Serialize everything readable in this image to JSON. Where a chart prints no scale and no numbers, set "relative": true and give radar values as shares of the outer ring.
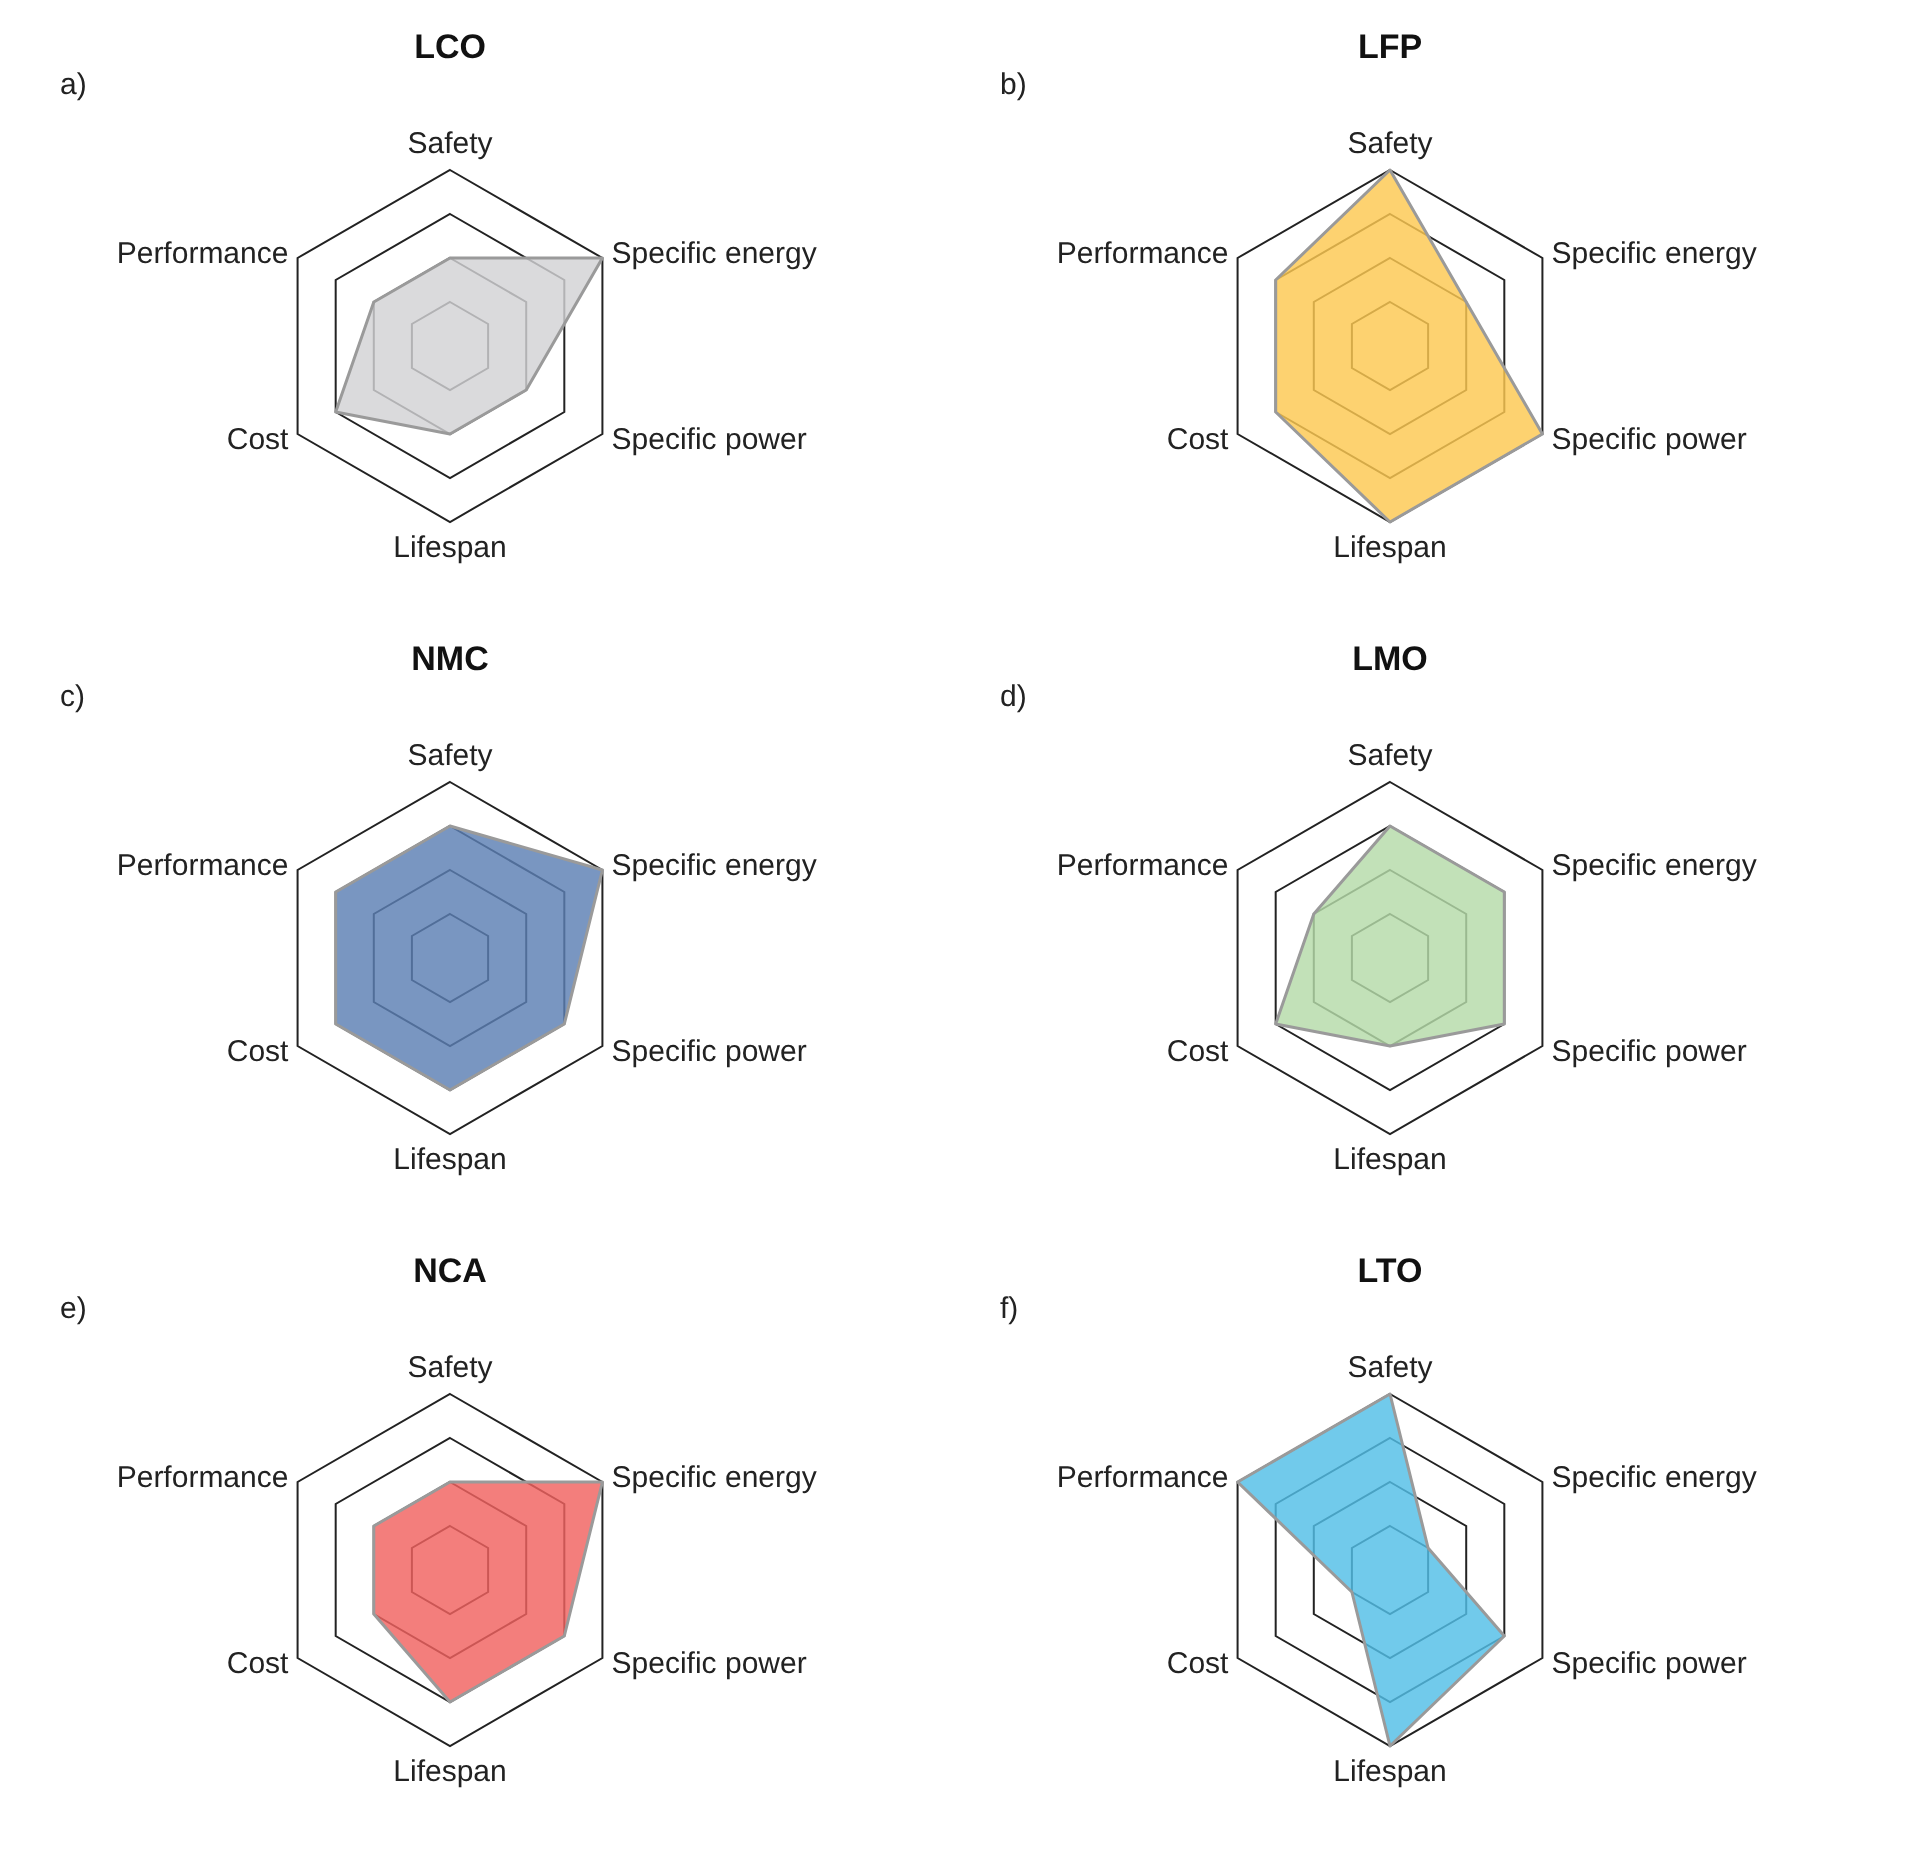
{
  "chart_data": [
    {
      "type": "radar",
      "title": "LCO",
      "annotations": [
        "a)"
      ],
      "relative": true,
      "grid": true,
      "categories": [
        "Safety",
        "Specific energy",
        "Specific power",
        "Lifespan",
        "Cost",
        "Performance"
      ],
      "series": [
        {
          "color": "#d2d2d4",
          "values": [
            0.5,
            1,
            0.5,
            0.5,
            0.75,
            0.5
          ]
        }
      ]
    },
    {
      "type": "radar",
      "title": "LFP",
      "annotations": [
        "b)"
      ],
      "relative": true,
      "grid": true,
      "categories": [
        "Safety",
        "Specific energy",
        "Specific power",
        "Lifespan",
        "Cost",
        "Performance"
      ],
      "series": [
        {
          "color": "#fcc850",
          "values": [
            1,
            0.5,
            1,
            1,
            0.75,
            0.75
          ]
        }
      ]
    },
    {
      "type": "radar",
      "title": "NMC",
      "annotations": [
        "c)"
      ],
      "relative": true,
      "grid": true,
      "categories": [
        "Safety",
        "Specific energy",
        "Specific power",
        "Lifespan",
        "Cost",
        "Performance"
      ],
      "series": [
        {
          "color": "#5b7fb3",
          "values": [
            0.75,
            1,
            0.75,
            0.75,
            0.75,
            0.75
          ]
        }
      ]
    },
    {
      "type": "radar",
      "title": "LMO",
      "annotations": [
        "d)"
      ],
      "relative": true,
      "grid": true,
      "categories": [
        "Safety",
        "Specific energy",
        "Specific power",
        "Lifespan",
        "Cost",
        "Performance"
      ],
      "series": [
        {
          "color": "#b4dba8",
          "values": [
            0.75,
            0.75,
            0.75,
            0.5,
            0.75,
            0.5
          ]
        }
      ]
    },
    {
      "type": "radar",
      "title": "NCA",
      "annotations": [
        "e)"
      ],
      "relative": true,
      "grid": true,
      "categories": [
        "Safety",
        "Specific energy",
        "Specific power",
        "Lifespan",
        "Cost",
        "Performance"
      ],
      "series": [
        {
          "color": "#f0625f",
          "values": [
            0.5,
            1,
            0.75,
            0.75,
            0.5,
            0.5
          ]
        }
      ]
    },
    {
      "type": "radar",
      "title": "LTO",
      "annotations": [
        "f)"
      ],
      "relative": true,
      "grid": true,
      "categories": [
        "Safety",
        "Specific energy",
        "Specific power",
        "Lifespan",
        "Cost",
        "Performance"
      ],
      "series": [
        {
          "color": "#52bee6",
          "values": [
            1,
            0.25,
            0.75,
            1,
            0.25,
            1
          ]
        }
      ]
    }
  ]
}
